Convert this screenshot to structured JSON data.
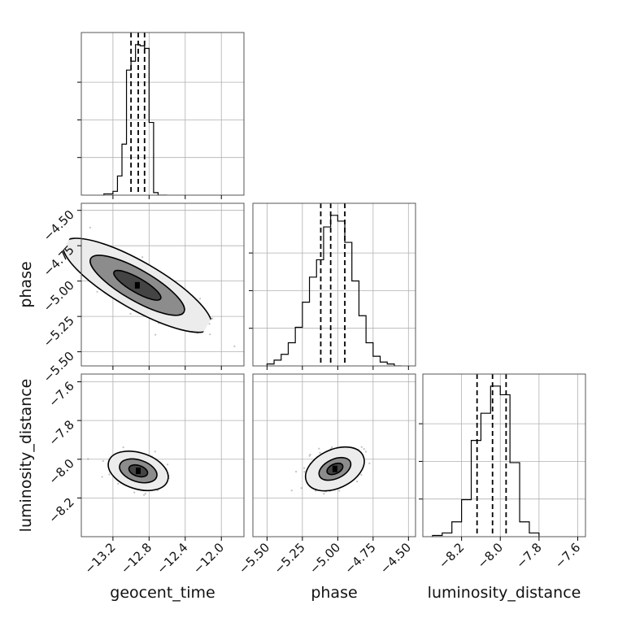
{
  "chart_data": {
    "type": "corner",
    "parameters": [
      "geocent_time",
      "phase",
      "luminosity_distance"
    ],
    "ranges": {
      "geocent_time": [
        -13.55,
        -11.75
      ],
      "phase": [
        -5.6,
        -4.45
      ],
      "luminosity_distance": [
        -8.4,
        -7.56
      ]
    },
    "ticks": {
      "geocent_time": [
        "−13.2",
        "−12.8",
        "−12.4",
        "−12.0"
      ],
      "phase": [
        "−5.50",
        "−5.25",
        "−5.00",
        "−4.75",
        "−4.50"
      ],
      "luminosity_distance": [
        "−8.2",
        "−8.0",
        "−7.8",
        "−7.6"
      ]
    },
    "tick_values": {
      "geocent_time": [
        -13.2,
        -12.8,
        -12.4,
        -12.0
      ],
      "phase": [
        -5.5,
        -5.25,
        -5.0,
        -4.75,
        -4.5
      ],
      "luminosity_distance": [
        -8.2,
        -8.0,
        -7.8,
        -7.6
      ]
    },
    "quantiles": {
      "geocent_time": [
        -13.0,
        -12.92,
        -12.85
      ],
      "phase": [
        -5.12,
        -5.05,
        -4.95
      ],
      "luminosity_distance": [
        -8.12,
        -8.04,
        -7.97
      ]
    },
    "histograms": {
      "geocent_time": {
        "bins": [
          -13.3,
          -13.2,
          -13.15,
          -13.1,
          -13.05,
          -13.0,
          -12.95,
          -12.9,
          -12.85,
          -12.8,
          -12.75,
          -12.7,
          -12.6
        ],
        "counts": [
          1,
          3,
          15,
          40,
          98,
          105,
          118,
          117,
          115,
          57,
          2,
          0
        ]
      },
      "phase": {
        "bins": [
          -5.5,
          -5.45,
          -5.4,
          -5.35,
          -5.3,
          -5.25,
          -5.2,
          -5.15,
          -5.1,
          -5.05,
          -5.0,
          -4.95,
          -4.9,
          -4.85,
          -4.8,
          -4.75,
          -4.7,
          -4.65,
          -4.6,
          -4.55
        ],
        "counts": [
          1,
          3,
          6,
          12,
          20,
          33,
          46,
          55,
          72,
          78,
          75,
          64,
          44,
          26,
          12,
          5,
          2,
          1,
          0
        ]
      },
      "luminosity_distance": {
        "bins": [
          -8.35,
          -8.3,
          -8.25,
          -8.2,
          -8.15,
          -8.1,
          -8.05,
          -8.0,
          -7.95,
          -7.9,
          -7.85,
          -7.8
        ],
        "counts": [
          1,
          3,
          12,
          30,
          78,
          100,
          122,
          115,
          60,
          12,
          3
        ]
      }
    },
    "contours_2d": [
      {
        "x": "geocent_time",
        "y": "phase",
        "center": [
          -12.93,
          -5.03
        ],
        "levels": [
          [
            0.08,
            0.19
          ],
          [
            0.17,
            0.38
          ],
          [
            0.26,
            0.6
          ]
        ],
        "angle_deg": 60
      },
      {
        "x": "geocent_time",
        "y": "luminosity_distance",
        "center": [
          -12.92,
          -8.06
        ],
        "levels": [
          [
            0.06,
            0.05
          ],
          [
            0.12,
            0.1
          ],
          [
            0.2,
            0.16
          ]
        ],
        "angle_deg": 72
      },
      {
        "x": "phase",
        "y": "luminosity_distance",
        "center": [
          -5.02,
          -8.05
        ],
        "levels": [
          [
            0.06,
            0.025
          ],
          [
            0.12,
            0.05
          ],
          [
            0.22,
            0.1
          ]
        ],
        "angle_deg": 25
      }
    ],
    "axis_titles": {
      "x": [
        "geocent_time",
        "phase",
        "luminosity_distance"
      ],
      "y": [
        "phase",
        "luminosity_distance"
      ]
    },
    "grid": true
  }
}
